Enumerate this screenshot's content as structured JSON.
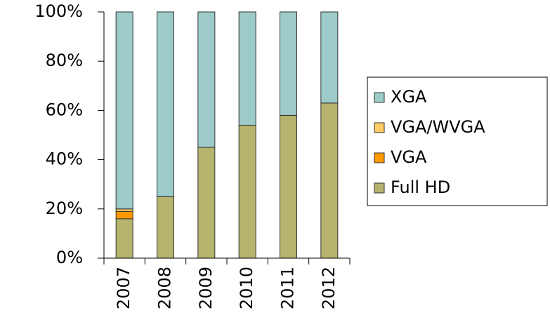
{
  "chart_data": {
    "type": "bar",
    "stacked": true,
    "categories": [
      "2007",
      "2008",
      "2009",
      "2010",
      "2011",
      "2012"
    ],
    "series": [
      {
        "name": "Full HD",
        "color": "#b5b36d",
        "values": [
          16,
          25,
          45,
          54,
          58,
          63
        ]
      },
      {
        "name": "VGA",
        "color": "#ff9900",
        "values": [
          3,
          0,
          0,
          0,
          0,
          0
        ]
      },
      {
        "name": "VGA/WVGA",
        "color": "#ffcc66",
        "values": [
          1,
          0,
          0,
          0,
          0,
          0
        ]
      },
      {
        "name": "XGA",
        "color": "#9ccbc9",
        "values": [
          80,
          75,
          55,
          46,
          42,
          37
        ]
      }
    ],
    "ylim": [
      0,
      100
    ],
    "yticks": [
      {
        "value": 0,
        "label": "0%"
      },
      {
        "value": 20,
        "label": "20%"
      },
      {
        "value": 40,
        "label": "40%"
      },
      {
        "value": 60,
        "label": "60%"
      },
      {
        "value": 80,
        "label": "80%"
      },
      {
        "value": 100,
        "label": "100%"
      }
    ],
    "grid": false,
    "legend": "right"
  }
}
